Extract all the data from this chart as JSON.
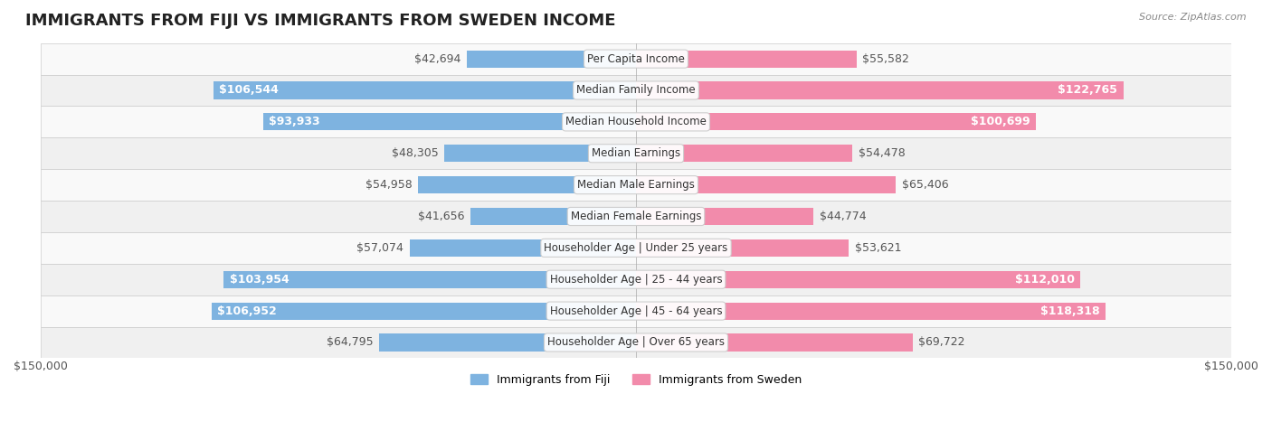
{
  "title": "IMMIGRANTS FROM FIJI VS IMMIGRANTS FROM SWEDEN INCOME",
  "source": "Source: ZipAtlas.com",
  "categories": [
    "Per Capita Income",
    "Median Family Income",
    "Median Household Income",
    "Median Earnings",
    "Median Male Earnings",
    "Median Female Earnings",
    "Householder Age | Under 25 years",
    "Householder Age | 25 - 44 years",
    "Householder Age | 45 - 64 years",
    "Householder Age | Over 65 years"
  ],
  "fiji_values": [
    42694,
    106544,
    93933,
    48305,
    54958,
    41656,
    57074,
    103954,
    106952,
    64795
  ],
  "sweden_values": [
    55582,
    122765,
    100699,
    54478,
    65406,
    44774,
    53621,
    112010,
    118318,
    69722
  ],
  "fiji_labels": [
    "$42,694",
    "$106,544",
    "$93,933",
    "$48,305",
    "$54,958",
    "$41,656",
    "$57,074",
    "$103,954",
    "$106,952",
    "$64,795"
  ],
  "sweden_labels": [
    "$55,582",
    "$122,765",
    "$100,699",
    "$54,478",
    "$65,406",
    "$44,774",
    "$53,621",
    "$112,010",
    "$118,318",
    "$69,722"
  ],
  "fiji_color": "#7eb3e0",
  "sweden_color": "#f28bab",
  "fiji_color_dark": "#5b9fd4",
  "sweden_color_dark": "#e8628f",
  "fiji_legend_color": "#7eb3e0",
  "sweden_legend_color": "#f28bab",
  "max_value": 150000,
  "bar_height": 0.55,
  "background_color": "#f5f5f5",
  "row_background_light": "#f9f9f9",
  "row_background_dark": "#f0f0f0",
  "label_fontsize": 9,
  "title_fontsize": 13,
  "category_fontsize": 8.5
}
